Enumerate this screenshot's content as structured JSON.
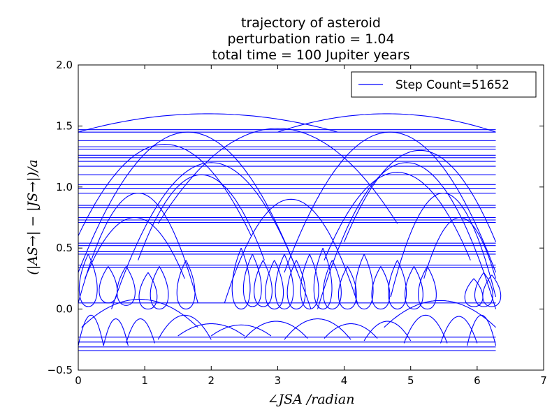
{
  "chart_data": {
    "type": "line",
    "title": [
      "trajectory of asteroid",
      "perturbation ratio = 1.04",
      "total time = 100 Jupiter years"
    ],
    "xlabel": "∠JSA /radian",
    "ylabel": "(|AS→| − |JS→|)/a",
    "xlim": [
      0,
      7
    ],
    "ylim": [
      -0.5,
      2.0
    ],
    "xticks": [
      "0",
      "1",
      "2",
      "3",
      "4",
      "5",
      "6",
      "7"
    ],
    "yticks": [
      "−0.5",
      "0.0",
      "0.5",
      "1.0",
      "1.5",
      "2.0"
    ],
    "grid": false,
    "legend": {
      "position": "top-right",
      "entries": [
        "Step Count=51652"
      ]
    },
    "series_color": "#0000ff",
    "horizontal_bands": [
      -0.34,
      -0.31,
      -0.27,
      -0.23,
      0.05,
      0.34,
      0.36,
      0.45,
      0.47,
      0.52,
      0.54,
      0.71,
      0.73,
      0.75,
      0.83,
      0.85,
      0.95,
      0.99,
      1.02,
      1.1,
      1.17,
      1.21,
      1.24,
      1.26,
      1.31,
      1.33,
      1.38,
      1.45,
      1.47
    ],
    "arches": [
      {
        "x0": 0.0,
        "x1": 3.9,
        "base": 1.45,
        "peak": 1.6
      },
      {
        "x0": 3.0,
        "x1": 6.28,
        "base": 1.45,
        "peak": 1.6
      },
      {
        "x0": 0.0,
        "x1": 3.3,
        "base": 0.3,
        "peak": 1.45
      },
      {
        "x0": 3.1,
        "x1": 6.28,
        "base": 0.3,
        "peak": 1.45
      },
      {
        "x0": 0.5,
        "x1": 3.5,
        "base": 0.0,
        "peak": 1.2
      },
      {
        "x0": 3.6,
        "x1": 6.28,
        "base": 0.0,
        "peak": 1.2
      },
      {
        "x0": 0.0,
        "x1": 2.6,
        "base": 0.6,
        "peak": 1.35
      },
      {
        "x0": 4.0,
        "x1": 6.28,
        "base": 0.55,
        "peak": 1.3
      },
      {
        "x0": 1.2,
        "x1": 4.8,
        "base": 0.7,
        "peak": 1.48
      },
      {
        "x0": 0.0,
        "x1": 1.8,
        "base": 0.05,
        "peak": 0.95
      },
      {
        "x0": 4.7,
        "x1": 6.28,
        "base": 0.1,
        "peak": 0.95
      },
      {
        "x0": 2.2,
        "x1": 4.2,
        "base": 0.05,
        "peak": 0.9
      },
      {
        "x0": 0.1,
        "x1": 1.6,
        "base": 0.25,
        "peak": 0.75
      },
      {
        "x0": 5.2,
        "x1": 6.28,
        "base": 0.25,
        "peak": 0.75
      },
      {
        "x0": 0.9,
        "x1": 2.8,
        "base": 0.4,
        "peak": 1.1
      },
      {
        "x0": 3.7,
        "x1": 5.9,
        "base": 0.4,
        "peak": 1.12
      }
    ],
    "loops": [
      {
        "x": 0.15,
        "bottom": 0.02,
        "top": 0.45
      },
      {
        "x": 0.45,
        "bottom": 0.05,
        "top": 0.35
      },
      {
        "x": 0.72,
        "bottom": 0.03,
        "top": 0.35
      },
      {
        "x": 1.05,
        "bottom": 0.0,
        "top": 0.3
      },
      {
        "x": 1.22,
        "bottom": 0.0,
        "top": 0.35
      },
      {
        "x": 1.62,
        "bottom": 0.0,
        "top": 0.4
      },
      {
        "x": 2.45,
        "bottom": 0.0,
        "top": 0.5
      },
      {
        "x": 2.62,
        "bottom": 0.02,
        "top": 0.45
      },
      {
        "x": 2.78,
        "bottom": 0.02,
        "top": 0.4
      },
      {
        "x": 2.95,
        "bottom": 0.0,
        "top": 0.4
      },
      {
        "x": 3.1,
        "bottom": 0.0,
        "top": 0.45
      },
      {
        "x": 3.28,
        "bottom": 0.0,
        "top": 0.4
      },
      {
        "x": 3.48,
        "bottom": 0.0,
        "top": 0.45
      },
      {
        "x": 3.68,
        "bottom": 0.0,
        "top": 0.5
      },
      {
        "x": 3.82,
        "bottom": 0.0,
        "top": 0.4
      },
      {
        "x": 4.05,
        "bottom": 0.0,
        "top": 0.35
      },
      {
        "x": 4.3,
        "bottom": 0.0,
        "top": 0.45
      },
      {
        "x": 4.55,
        "bottom": 0.0,
        "top": 0.35
      },
      {
        "x": 4.8,
        "bottom": 0.0,
        "top": 0.4
      },
      {
        "x": 5.05,
        "bottom": 0.0,
        "top": 0.35
      },
      {
        "x": 5.25,
        "bottom": 0.0,
        "top": 0.35
      },
      {
        "x": 5.95,
        "bottom": 0.02,
        "top": 0.25
      },
      {
        "x": 6.1,
        "bottom": 0.02,
        "top": 0.3
      },
      {
        "x": 6.22,
        "bottom": 0.02,
        "top": 0.28
      }
    ],
    "low_humps": [
      {
        "x0": 0.0,
        "x1": 0.38,
        "base": -0.3,
        "peak": -0.05
      },
      {
        "x0": 0.38,
        "x1": 0.75,
        "base": -0.3,
        "peak": -0.08
      },
      {
        "x0": 0.72,
        "x1": 1.15,
        "base": -0.28,
        "peak": -0.08
      },
      {
        "x0": 1.2,
        "x1": 2.0,
        "base": -0.25,
        "peak": -0.05
      },
      {
        "x0": 1.5,
        "x1": 2.5,
        "base": -0.22,
        "peak": -0.12
      },
      {
        "x0": 2.0,
        "x1": 2.9,
        "base": -0.22,
        "peak": -0.13
      },
      {
        "x0": 2.5,
        "x1": 3.45,
        "base": -0.24,
        "peak": -0.1
      },
      {
        "x0": 3.1,
        "x1": 4.1,
        "base": -0.25,
        "peak": -0.08
      },
      {
        "x0": 3.7,
        "x1": 4.5,
        "base": -0.24,
        "peak": -0.12
      },
      {
        "x0": 4.3,
        "x1": 5.0,
        "base": -0.26,
        "peak": -0.1
      },
      {
        "x0": 4.9,
        "x1": 5.55,
        "base": -0.28,
        "peak": -0.05
      },
      {
        "x0": 5.45,
        "x1": 6.0,
        "base": -0.28,
        "peak": -0.06
      },
      {
        "x0": 5.85,
        "x1": 6.28,
        "base": -0.3,
        "peak": -0.05
      },
      {
        "x0": 0.05,
        "x1": 1.8,
        "base": -0.15,
        "peak": 0.08
      },
      {
        "x0": 4.6,
        "x1": 6.28,
        "base": -0.15,
        "peak": 0.07
      }
    ]
  }
}
